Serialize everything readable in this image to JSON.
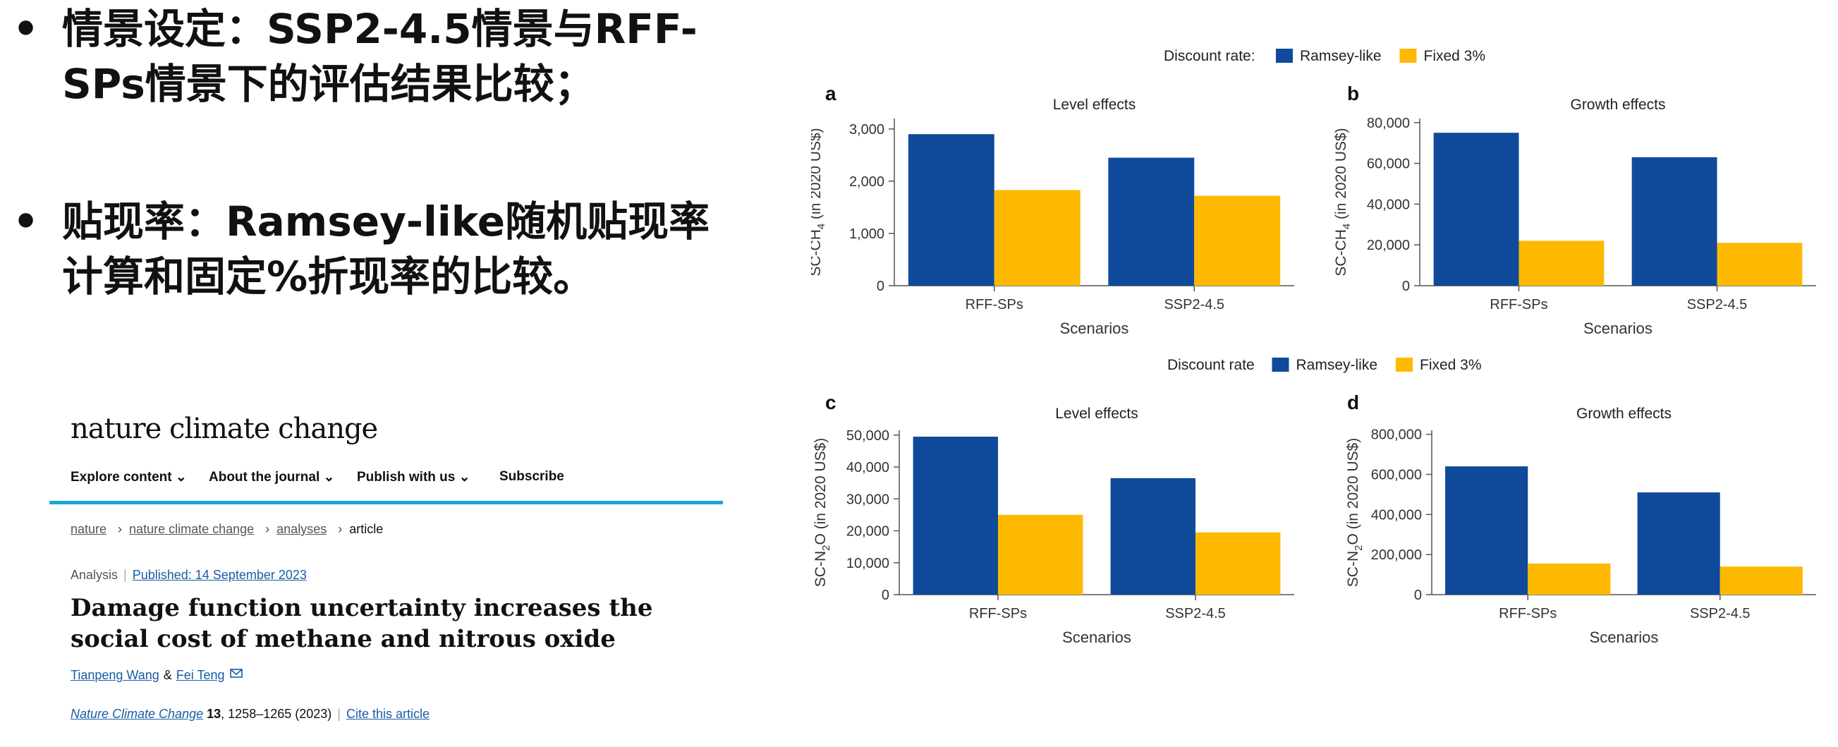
{
  "bullets": [
    {
      "dot": "•",
      "text": "情景设定：SSP2-4.5情景与RFF-SPs情景下的评估结果比较；"
    },
    {
      "dot": "•",
      "text": "贴现率：Ramsey-like随机贴现率计算和固定%折现率的比较。"
    }
  ],
  "article": {
    "journal": "nature climate change",
    "nav": [
      "Explore content ⌄",
      "About the journal ⌄",
      "Publish with us ⌄",
      "Subscribe"
    ],
    "breadcrumbs": [
      "nature",
      "nature climate change",
      "analyses",
      "article"
    ],
    "type": "Analysis",
    "published": "Published: 14 September 2023",
    "title": "Damage function uncertainty increases the social cost of methane and nitrous oxide",
    "author1": "Tianpeng Wang",
    "amp": "&",
    "author2": "Fei Teng",
    "citation_journal": "Nature Climate Change",
    "citation_volume": "13",
    "citation_rest": ", 1258–1265 (2023)",
    "cite_link": "Cite this article"
  },
  "colors": {
    "ramsey": "#0f4a9b",
    "fixed": "#fdb900",
    "accent": "#18a6d8",
    "link": "#1a5ca3"
  },
  "legend": {
    "title": "Discount rate:",
    "title2": "Discount rate",
    "items": [
      "Ramsey-like",
      "Fixed 3%"
    ]
  },
  "chart_data": [
    {
      "panel": "a",
      "type": "bar",
      "title": "Level effects",
      "xlabel": "Scenarios",
      "ylabel": "SC-CH4 (in 2020 US$)",
      "categories": [
        "RFF-SPs",
        "SSP2-4.5"
      ],
      "ylim": [
        0,
        3200
      ],
      "yticks": [
        0,
        1000,
        2000,
        3000
      ],
      "yticklabels": [
        "0",
        "1,000",
        "2,000",
        "3,000"
      ],
      "series": [
        {
          "name": "Ramsey-like",
          "values": [
            2900,
            2450
          ]
        },
        {
          "name": "Fixed 3%",
          "values": [
            1830,
            1720
          ]
        }
      ]
    },
    {
      "panel": "b",
      "type": "bar",
      "title": "Growth effects",
      "xlabel": "Scenarios",
      "ylabel": "SC-CH4 (in 2020 US$)",
      "categories": [
        "RFF-SPs",
        "SSP2-4.5"
      ],
      "ylim": [
        0,
        82000
      ],
      "yticks": [
        0,
        20000,
        40000,
        60000,
        80000
      ],
      "yticklabels": [
        "0",
        "20,000",
        "40,000",
        "60,000",
        "80,000"
      ],
      "series": [
        {
          "name": "Ramsey-like",
          "values": [
            75000,
            63000
          ]
        },
        {
          "name": "Fixed 3%",
          "values": [
            22000,
            21000
          ]
        }
      ]
    },
    {
      "panel": "c",
      "type": "bar",
      "title": "Level effects",
      "xlabel": "Scenarios",
      "ylabel": "SC-N2O (in 2020 US$)",
      "categories": [
        "RFF-SPs",
        "SSP2-4.5"
      ],
      "ylim": [
        0,
        51500
      ],
      "yticks": [
        0,
        10000,
        20000,
        30000,
        40000,
        50000
      ],
      "yticklabels": [
        "0",
        "10,000",
        "20,000",
        "30,000",
        "40,000",
        "50,000"
      ],
      "series": [
        {
          "name": "Ramsey-like",
          "values": [
            49500,
            36500
          ]
        },
        {
          "name": "Fixed 3%",
          "values": [
            25000,
            19500
          ]
        }
      ]
    },
    {
      "panel": "d",
      "type": "bar",
      "title": "Growth effects",
      "xlabel": "Scenarios",
      "ylabel": "SC-N2O (in 2020 US$)",
      "categories": [
        "RFF-SPs",
        "SSP2-4.5"
      ],
      "ylim": [
        0,
        820000
      ],
      "yticks": [
        0,
        200000,
        400000,
        600000,
        800000
      ],
      "yticklabels": [
        "0",
        "200,000",
        "400,000",
        "600,000",
        "800,000"
      ],
      "series": [
        {
          "name": "Ramsey-like",
          "values": [
            640000,
            510000
          ]
        },
        {
          "name": "Fixed 3%",
          "values": [
            155000,
            140000
          ]
        }
      ]
    }
  ]
}
